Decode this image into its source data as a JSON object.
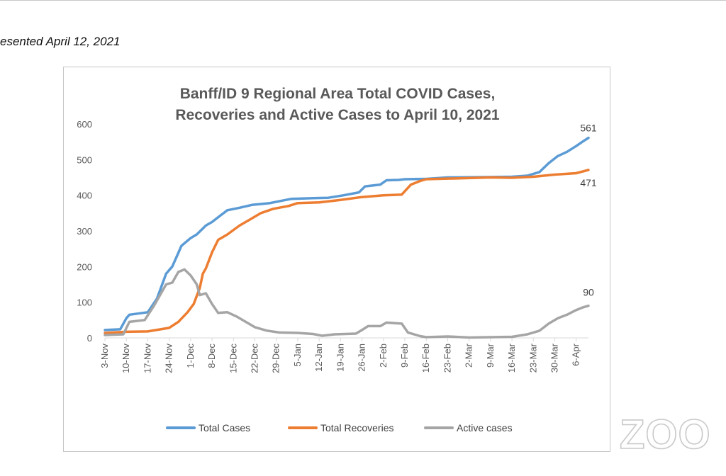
{
  "caption": "esented April 12, 2021",
  "watermark": {
    "text": "ZOO",
    "icon": "zoom-logo"
  },
  "colors": {
    "total_cases": "#5b9bd5",
    "total_recoveries": "#ed7d31",
    "active_cases": "#a5a5a5",
    "axis": "#d9d9d9",
    "frame": "#c6c6c6",
    "text": "#595959"
  },
  "chart_data": {
    "type": "line",
    "title": [
      "Banff/ID 9 Regional Area Total COVID Cases,",
      "Recoveries and Active Cases to April 10, 2021"
    ],
    "xlabel": "",
    "ylabel": "",
    "ylim": [
      0,
      600
    ],
    "yticks": [
      0,
      100,
      200,
      300,
      400,
      500,
      600
    ],
    "xlim": [
      "2020-11-03",
      "2021-04-10"
    ],
    "xticks": [
      {
        "date": "2020-11-03",
        "label": "3-Nov"
      },
      {
        "date": "2020-11-10",
        "label": "10-Nov"
      },
      {
        "date": "2020-11-17",
        "label": "17-Nov"
      },
      {
        "date": "2020-11-24",
        "label": "24-Nov"
      },
      {
        "date": "2020-12-01",
        "label": "1-Dec"
      },
      {
        "date": "2020-12-08",
        "label": "8-Dec"
      },
      {
        "date": "2020-12-15",
        "label": "15-Dec"
      },
      {
        "date": "2020-12-22",
        "label": "22-Dec"
      },
      {
        "date": "2020-12-29",
        "label": "29-Dec"
      },
      {
        "date": "2021-01-05",
        "label": "5-Jan"
      },
      {
        "date": "2021-01-12",
        "label": "12-Jan"
      },
      {
        "date": "2021-01-19",
        "label": "19-Jan"
      },
      {
        "date": "2021-01-26",
        "label": "26-Jan"
      },
      {
        "date": "2021-02-02",
        "label": "2-Feb"
      },
      {
        "date": "2021-02-09",
        "label": "9-Feb"
      },
      {
        "date": "2021-02-16",
        "label": "16-Feb"
      },
      {
        "date": "2021-02-23",
        "label": "23-Feb"
      },
      {
        "date": "2021-03-02",
        "label": "2-Mar"
      },
      {
        "date": "2021-03-09",
        "label": "9-Mar"
      },
      {
        "date": "2021-03-16",
        "label": "16-Mar"
      },
      {
        "date": "2021-03-23",
        "label": "23-Mar"
      },
      {
        "date": "2021-03-30",
        "label": "30-Mar"
      },
      {
        "date": "2021-04-06",
        "label": "6-Apr"
      }
    ],
    "legend_position": "bottom",
    "grid": false,
    "series": [
      {
        "name": "Total Cases",
        "color": "#5b9bd5",
        "end_label": "561",
        "points": [
          [
            "2020-11-03",
            22
          ],
          [
            "2020-11-08",
            24
          ],
          [
            "2020-11-10",
            55
          ],
          [
            "2020-11-11",
            65
          ],
          [
            "2020-11-17",
            72
          ],
          [
            "2020-11-20",
            110
          ],
          [
            "2020-11-23",
            180
          ],
          [
            "2020-11-25",
            200
          ],
          [
            "2020-11-28",
            258
          ],
          [
            "2020-12-01",
            280
          ],
          [
            "2020-12-03",
            290
          ],
          [
            "2020-12-06",
            315
          ],
          [
            "2020-12-08",
            325
          ],
          [
            "2020-12-11",
            345
          ],
          [
            "2020-12-13",
            358
          ],
          [
            "2020-12-17",
            365
          ],
          [
            "2020-12-21",
            373
          ],
          [
            "2020-12-27",
            378
          ],
          [
            "2020-12-31",
            385
          ],
          [
            "2021-01-03",
            390
          ],
          [
            "2021-01-10",
            392
          ],
          [
            "2021-01-15",
            393
          ],
          [
            "2021-01-20",
            400
          ],
          [
            "2021-01-25",
            408
          ],
          [
            "2021-01-27",
            425
          ],
          [
            "2021-02-01",
            430
          ],
          [
            "2021-02-03",
            442
          ],
          [
            "2021-02-07",
            443
          ],
          [
            "2021-02-09",
            445
          ],
          [
            "2021-02-16",
            446
          ],
          [
            "2021-02-23",
            450
          ],
          [
            "2021-03-09",
            451
          ],
          [
            "2021-03-16",
            452
          ],
          [
            "2021-03-21",
            455
          ],
          [
            "2021-03-25",
            465
          ],
          [
            "2021-03-28",
            490
          ],
          [
            "2021-03-31",
            510
          ],
          [
            "2021-04-03",
            522
          ],
          [
            "2021-04-06",
            538
          ],
          [
            "2021-04-08",
            550
          ],
          [
            "2021-04-10",
            561
          ]
        ]
      },
      {
        "name": "Total Recoveries",
        "color": "#ed7d31",
        "end_label": "471",
        "points": [
          [
            "2020-11-03",
            14
          ],
          [
            "2020-11-10",
            17
          ],
          [
            "2020-11-17",
            18
          ],
          [
            "2020-11-24",
            28
          ],
          [
            "2020-11-27",
            45
          ],
          [
            "2020-11-30",
            72
          ],
          [
            "2020-12-02",
            95
          ],
          [
            "2020-12-04",
            140
          ],
          [
            "2020-12-05",
            180
          ],
          [
            "2020-12-06",
            195
          ],
          [
            "2020-12-08",
            240
          ],
          [
            "2020-12-10",
            275
          ],
          [
            "2020-12-13",
            290
          ],
          [
            "2020-12-17",
            315
          ],
          [
            "2020-12-20",
            330
          ],
          [
            "2020-12-24",
            350
          ],
          [
            "2020-12-28",
            362
          ],
          [
            "2021-01-02",
            370
          ],
          [
            "2021-01-05",
            378
          ],
          [
            "2021-01-12",
            380
          ],
          [
            "2021-01-19",
            387
          ],
          [
            "2021-01-26",
            395
          ],
          [
            "2021-02-02",
            400
          ],
          [
            "2021-02-08",
            402
          ],
          [
            "2021-02-11",
            430
          ],
          [
            "2021-02-14",
            440
          ],
          [
            "2021-02-16",
            445
          ],
          [
            "2021-03-09",
            450
          ],
          [
            "2021-03-16",
            449
          ],
          [
            "2021-03-23",
            452
          ],
          [
            "2021-03-30",
            458
          ],
          [
            "2021-04-06",
            462
          ],
          [
            "2021-04-10",
            471
          ]
        ]
      },
      {
        "name": "Active cases",
        "color": "#a5a5a5",
        "end_label": "90",
        "points": [
          [
            "2020-11-03",
            8
          ],
          [
            "2020-11-09",
            10
          ],
          [
            "2020-11-11",
            45
          ],
          [
            "2020-11-16",
            50
          ],
          [
            "2020-11-19",
            90
          ],
          [
            "2020-11-21",
            120
          ],
          [
            "2020-11-23",
            150
          ],
          [
            "2020-11-25",
            155
          ],
          [
            "2020-11-27",
            185
          ],
          [
            "2020-11-29",
            192
          ],
          [
            "2020-12-01",
            175
          ],
          [
            "2020-12-03",
            150
          ],
          [
            "2020-12-04",
            120
          ],
          [
            "2020-12-06",
            125
          ],
          [
            "2020-12-08",
            95
          ],
          [
            "2020-12-10",
            70
          ],
          [
            "2020-12-13",
            72
          ],
          [
            "2020-12-16",
            60
          ],
          [
            "2020-12-19",
            45
          ],
          [
            "2020-12-22",
            30
          ],
          [
            "2020-12-26",
            20
          ],
          [
            "2020-12-30",
            15
          ],
          [
            "2021-01-05",
            14
          ],
          [
            "2021-01-10",
            11
          ],
          [
            "2021-01-13",
            6
          ],
          [
            "2021-01-17",
            10
          ],
          [
            "2021-01-24",
            12
          ],
          [
            "2021-01-26",
            22
          ],
          [
            "2021-01-28",
            33
          ],
          [
            "2021-02-01",
            33
          ],
          [
            "2021-02-03",
            43
          ],
          [
            "2021-02-08",
            40
          ],
          [
            "2021-02-10",
            15
          ],
          [
            "2021-02-14",
            5
          ],
          [
            "2021-02-16",
            2
          ],
          [
            "2021-02-23",
            4
          ],
          [
            "2021-03-02",
            1
          ],
          [
            "2021-03-09",
            2
          ],
          [
            "2021-03-16",
            3
          ],
          [
            "2021-03-21",
            10
          ],
          [
            "2021-03-25",
            20
          ],
          [
            "2021-03-28",
            40
          ],
          [
            "2021-03-31",
            55
          ],
          [
            "2021-04-03",
            65
          ],
          [
            "2021-04-06",
            78
          ],
          [
            "2021-04-08",
            85
          ],
          [
            "2021-04-10",
            90
          ]
        ]
      }
    ]
  }
}
